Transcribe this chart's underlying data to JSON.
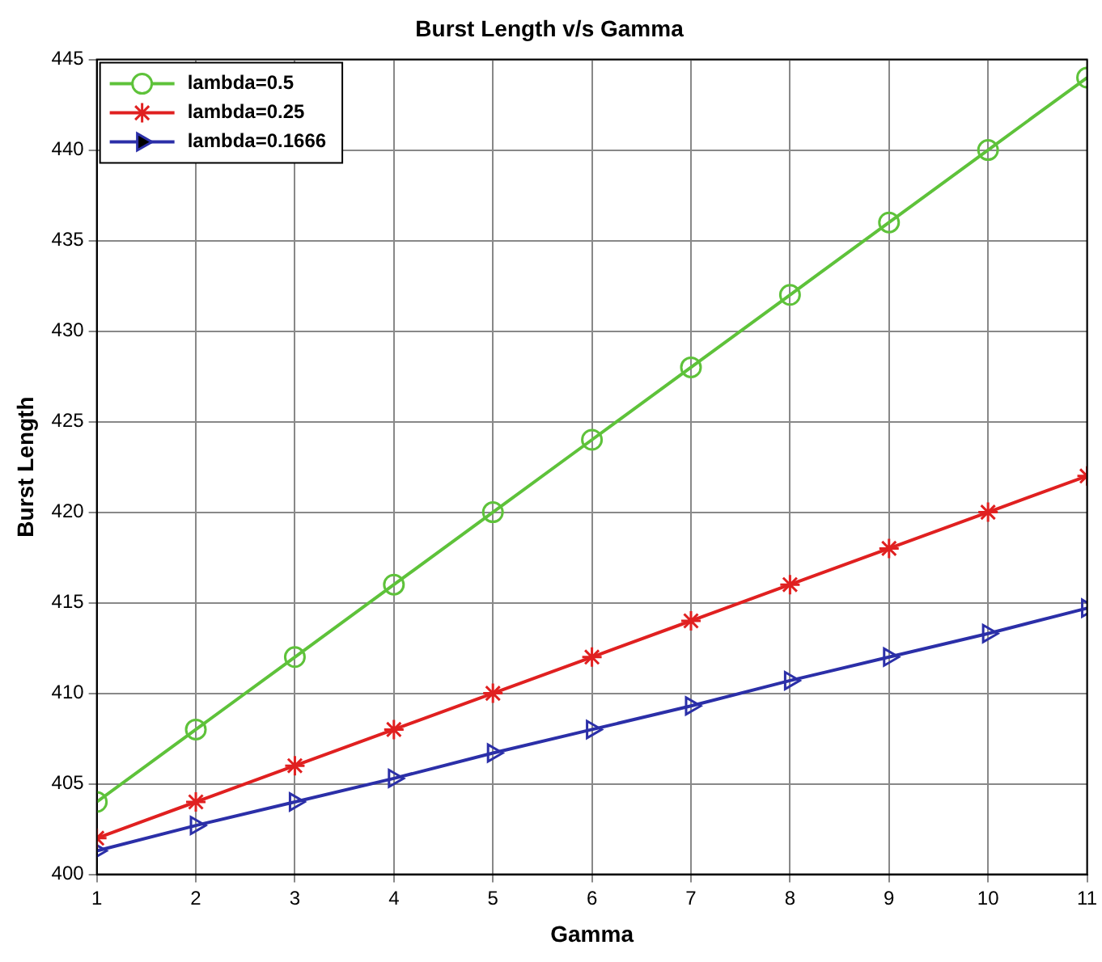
{
  "chart_data": {
    "type": "line",
    "title": "Burst Length v/s Gamma",
    "xlabel": "Gamma",
    "ylabel": "Burst Length",
    "x": [
      1,
      2,
      3,
      4,
      5,
      6,
      7,
      8,
      9,
      10,
      11
    ],
    "series": [
      {
        "name": "lambda=0.5",
        "color": "#5ec23a",
        "marker": "circle",
        "values": [
          404,
          408,
          412,
          416,
          420,
          424,
          428,
          432,
          436,
          440,
          444
        ]
      },
      {
        "name": "lambda=0.25",
        "color": "#e02020",
        "marker": "cross",
        "values": [
          402,
          404,
          406,
          408,
          410,
          412,
          414,
          416,
          418,
          420,
          422
        ]
      },
      {
        "name": "lambda=0.1666",
        "color": "#2b2fa8",
        "marker": "triangle",
        "values": [
          401.3,
          402.7,
          404,
          405.3,
          406.7,
          408,
          409.3,
          410.7,
          412,
          413.3,
          414.7
        ]
      }
    ],
    "xlim": [
      1,
      11
    ],
    "xticks": [
      1,
      2,
      3,
      4,
      5,
      6,
      7,
      8,
      9,
      10,
      11
    ],
    "ylim": [
      400,
      445
    ],
    "yticks": [
      400,
      405,
      410,
      415,
      420,
      425,
      430,
      435,
      440,
      445
    ],
    "grid": true,
    "legend": "top left",
    "line_style": "solid"
  }
}
